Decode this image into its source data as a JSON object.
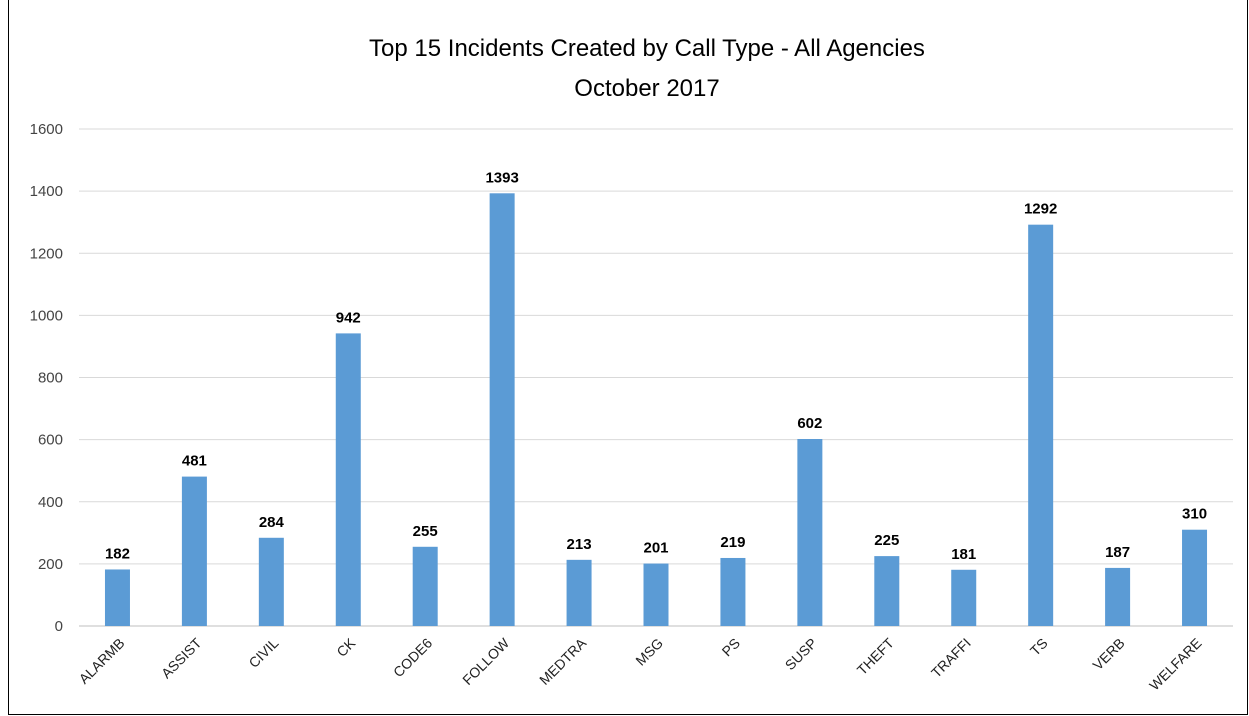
{
  "chart_data": {
    "type": "bar",
    "title": "Top 15 Incidents Created by Call Type - All Agencies",
    "subtitle": "October 2017",
    "xlabel": "",
    "ylabel": "",
    "categories": [
      "ALARMB",
      "ASSIST",
      "CIVIL",
      "CK",
      "CODE6",
      "FOLLOW",
      "MEDTRA",
      "MSG",
      "PS",
      "SUSP",
      "THEFT",
      "TRAFFI",
      "TS",
      "VERB",
      "WELFARE"
    ],
    "values": [
      182,
      481,
      284,
      942,
      255,
      1393,
      213,
      201,
      219,
      602,
      225,
      181,
      1292,
      187,
      310
    ],
    "ylim": [
      0,
      1600
    ],
    "yticks": [
      0,
      200,
      400,
      600,
      800,
      1000,
      1200,
      1400,
      1600
    ],
    "grid": true,
    "legend": "none",
    "data_labels": true,
    "bar_color": "#5b9bd5"
  }
}
